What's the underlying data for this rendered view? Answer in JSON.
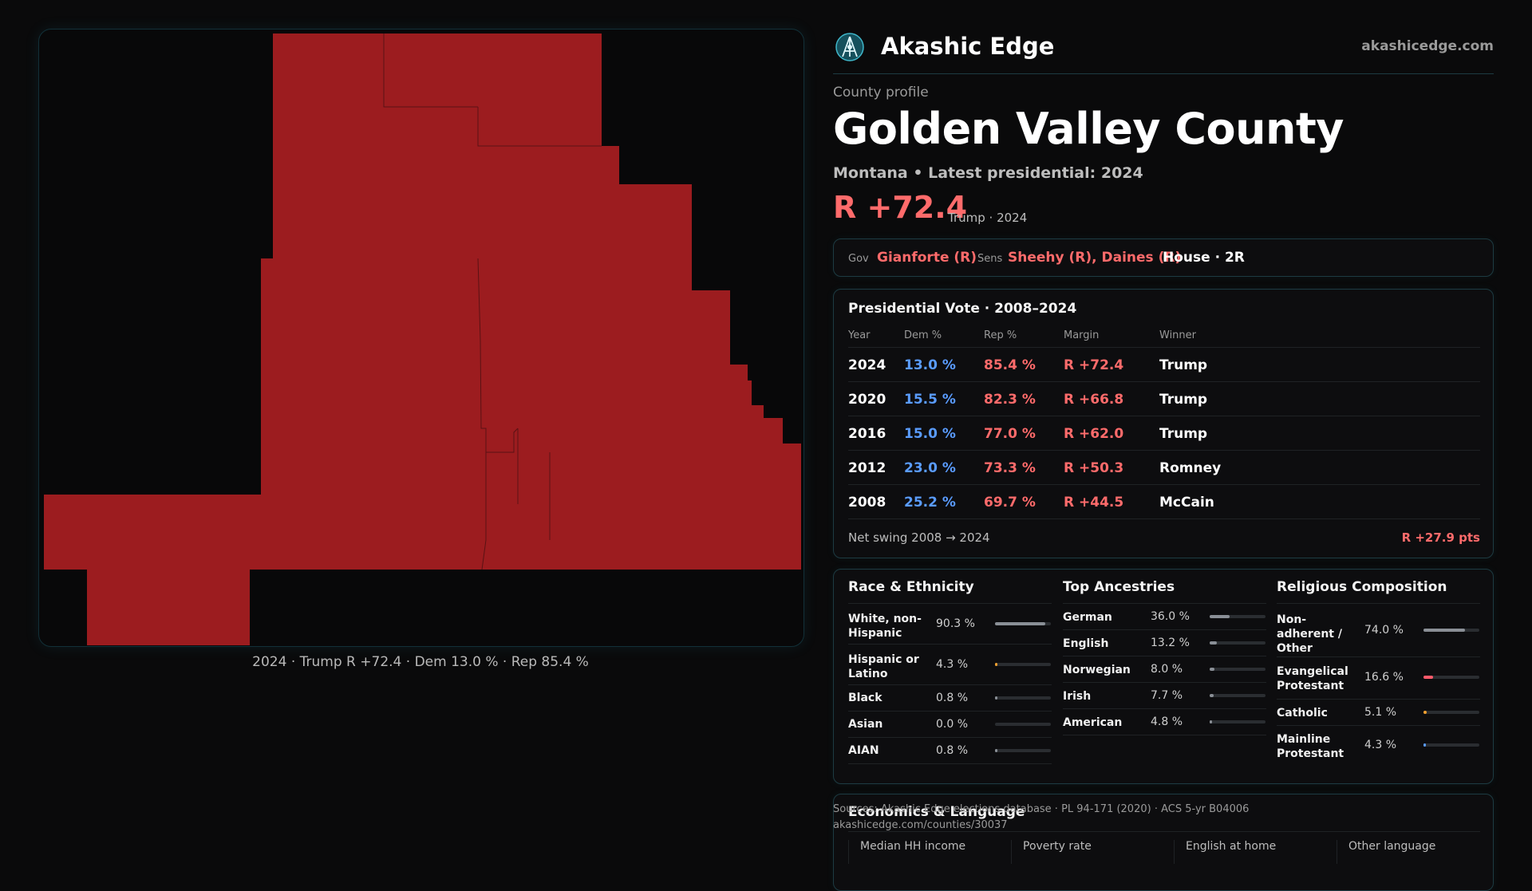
{
  "brand": {
    "name": "Akashic Edge",
    "url": "akashicedge.com"
  },
  "map": {
    "fill_color": "#9c1c1f",
    "caption": "2024 · Trump R +72.4 · Dem 13.0 % · Rep 85.4 %"
  },
  "profile": {
    "eyebrow": "County profile",
    "title": "Golden Valley County",
    "subtitle": "Montana • Latest presidential: 2024",
    "margin": "R +72.4",
    "margin_note": "Trump · 2024"
  },
  "officials": {
    "gov_label": "Gov",
    "gov_value": "Gianforte (R)",
    "sens_label": "Sens",
    "sens_value": "Sheehy (R), Daines (R)",
    "house": "House · 2R"
  },
  "presidential": {
    "title": "Presidential Vote · 2008–2024",
    "headers": {
      "year": "Year",
      "dem": "Dem %",
      "rep": "Rep %",
      "margin": "Margin",
      "winner": "Winner"
    },
    "rows": [
      {
        "year": "2024",
        "dem": "13.0 %",
        "rep": "85.4 %",
        "margin": "R +72.4",
        "winner": "Trump"
      },
      {
        "year": "2020",
        "dem": "15.5 %",
        "rep": "82.3 %",
        "margin": "R +66.8",
        "winner": "Trump"
      },
      {
        "year": "2016",
        "dem": "15.0 %",
        "rep": "77.0 %",
        "margin": "R +62.0",
        "winner": "Trump"
      },
      {
        "year": "2012",
        "dem": "23.0 %",
        "rep": "73.3 %",
        "margin": "R +50.3",
        "winner": "Romney"
      },
      {
        "year": "2008",
        "dem": "25.2 %",
        "rep": "69.7 %",
        "margin": "R +44.5",
        "winner": "McCain"
      }
    ],
    "swing_label": "Net swing 2008 → 2024",
    "swing_value": "R +27.9 pts"
  },
  "race": {
    "title": "Race & Ethnicity",
    "items": [
      {
        "label": "White, non-Hispanic",
        "value": "90.3 %",
        "fraction": 0.903,
        "color": "#8a8f96"
      },
      {
        "label": "Hispanic or Latino",
        "value": "4.3 %",
        "fraction": 0.043,
        "color": "#f0a030"
      },
      {
        "label": "Black",
        "value": "0.8 %",
        "fraction": 0.008,
        "color": "#8a8f96"
      },
      {
        "label": "Asian",
        "value": "0.0 %",
        "fraction": 0.0,
        "color": "#8a8f96"
      },
      {
        "label": "AIAN",
        "value": "0.8 %",
        "fraction": 0.008,
        "color": "#8a8f96"
      }
    ]
  },
  "ancestry": {
    "title": "Top Ancestries",
    "items": [
      {
        "label": "German",
        "value": "36.0 %",
        "fraction": 0.36,
        "color": "#8a8f96"
      },
      {
        "label": "English",
        "value": "13.2 %",
        "fraction": 0.132,
        "color": "#8a8f96"
      },
      {
        "label": "Norwegian",
        "value": "8.0 %",
        "fraction": 0.08,
        "color": "#8a8f96"
      },
      {
        "label": "Irish",
        "value": "7.7 %",
        "fraction": 0.077,
        "color": "#8a8f96"
      },
      {
        "label": "American",
        "value": "4.8 %",
        "fraction": 0.048,
        "color": "#8a8f96"
      }
    ]
  },
  "religion": {
    "title": "Religious Composition",
    "items": [
      {
        "label": "Non-adherent / Other",
        "value": "74.0 %",
        "fraction": 0.74,
        "color": "#8a8f96"
      },
      {
        "label": "Evangelical Protestant",
        "value": "16.6 %",
        "fraction": 0.166,
        "color": "#ff5a6a"
      },
      {
        "label": "Catholic",
        "value": "5.1 %",
        "fraction": 0.051,
        "color": "#f0a030"
      },
      {
        "label": "Mainline Protestant",
        "value": "4.3 %",
        "fraction": 0.043,
        "color": "#5a9cff"
      }
    ]
  },
  "economics": {
    "title": "Economics & Language",
    "headers": [
      "Median HH income",
      "Poverty rate",
      "English at home",
      "Other language"
    ]
  },
  "sources": {
    "line1": "Sources: Akashic Edge elections database · PL 94-171 (2020) · ACS 5-yr B04006",
    "line2": "akashicedge.com/counties/30037"
  }
}
